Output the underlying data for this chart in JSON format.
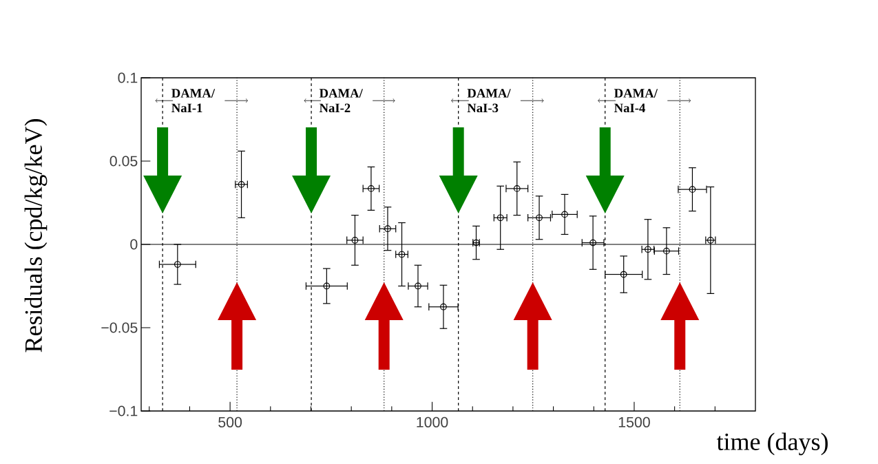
{
  "chart_data": {
    "type": "scatter",
    "xlabel": "time (days)",
    "ylabel": "Residuals (cpd/kg/keV)",
    "x": [
      370,
      528,
      739,
      809,
      849,
      890,
      925,
      965,
      1028,
      1109,
      1169,
      1210,
      1265,
      1328,
      1398,
      1474,
      1534,
      1580,
      1644,
      1689
    ],
    "values": [
      -0.012,
      0.036,
      -0.025,
      0.0025,
      0.0335,
      0.0094,
      -0.006,
      -0.025,
      -0.0375,
      0.001,
      0.016,
      0.0335,
      0.016,
      0.018,
      0.001,
      -0.018,
      -0.003,
      -0.004,
      0.033,
      0.0025
    ],
    "errors": [
      0.012,
      0.02,
      0.0105,
      0.015,
      0.013,
      0.013,
      0.019,
      0.0125,
      0.013,
      0.01,
      0.019,
      0.016,
      0.013,
      0.012,
      0.016,
      0.011,
      0.018,
      0.014,
      0.013,
      0.032
    ],
    "xerrors": [
      45,
      15,
      51,
      20,
      20,
      20,
      15,
      24,
      36,
      8,
      16,
      27,
      28,
      31,
      27,
      46,
      15,
      30,
      35,
      12
    ],
    "color": "#000000",
    "marker": "circle",
    "xlim": [
      280,
      1800
    ],
    "ylim": [
      -0.1,
      0.1
    ],
    "xticks": [
      {
        "value": 300,
        "label": null
      },
      {
        "value": 400,
        "label": null
      },
      500,
      {
        "value": 600,
        "label": null
      },
      {
        "value": 700,
        "label": null
      },
      {
        "value": 800,
        "label": null
      },
      {
        "value": 900,
        "label": null
      },
      1000,
      {
        "value": 1100,
        "label": null
      },
      {
        "value": 1200,
        "label": null
      },
      {
        "value": 1300,
        "label": null
      },
      {
        "value": 1400,
        "label": null
      },
      1500,
      {
        "value": 1600,
        "label": null
      },
      {
        "value": 1700,
        "label": null
      }
    ],
    "yticks": [
      {
        "value": -0.1,
        "label": "−0.1"
      },
      {
        "value": -0.05,
        "label": "−0.05"
      },
      0,
      0.05,
      0.1
    ],
    "ref_lines": [
      {
        "axis": "y",
        "value": 0,
        "line_style": "solid"
      },
      {
        "axis": "x",
        "value": 333,
        "line_style": "dashed"
      },
      {
        "axis": "x",
        "value": 517,
        "line_style": "dotted"
      },
      {
        "axis": "x",
        "value": 701,
        "line_style": "dashed"
      },
      {
        "axis": "x",
        "value": 881,
        "line_style": "dotted"
      },
      {
        "axis": "x",
        "value": 1065,
        "line_style": "dashed"
      },
      {
        "axis": "x",
        "value": 1249,
        "line_style": "dotted"
      },
      {
        "axis": "x",
        "value": 1428,
        "line_style": "dashed"
      },
      {
        "axis": "x",
        "value": 1613,
        "line_style": "dotted"
      }
    ],
    "annotations": [
      "DAMA/ NaI-1",
      "DAMA/ NaI-2",
      "DAMA/ NaI-3",
      "DAMA/ NaI-4"
    ]
  }
}
